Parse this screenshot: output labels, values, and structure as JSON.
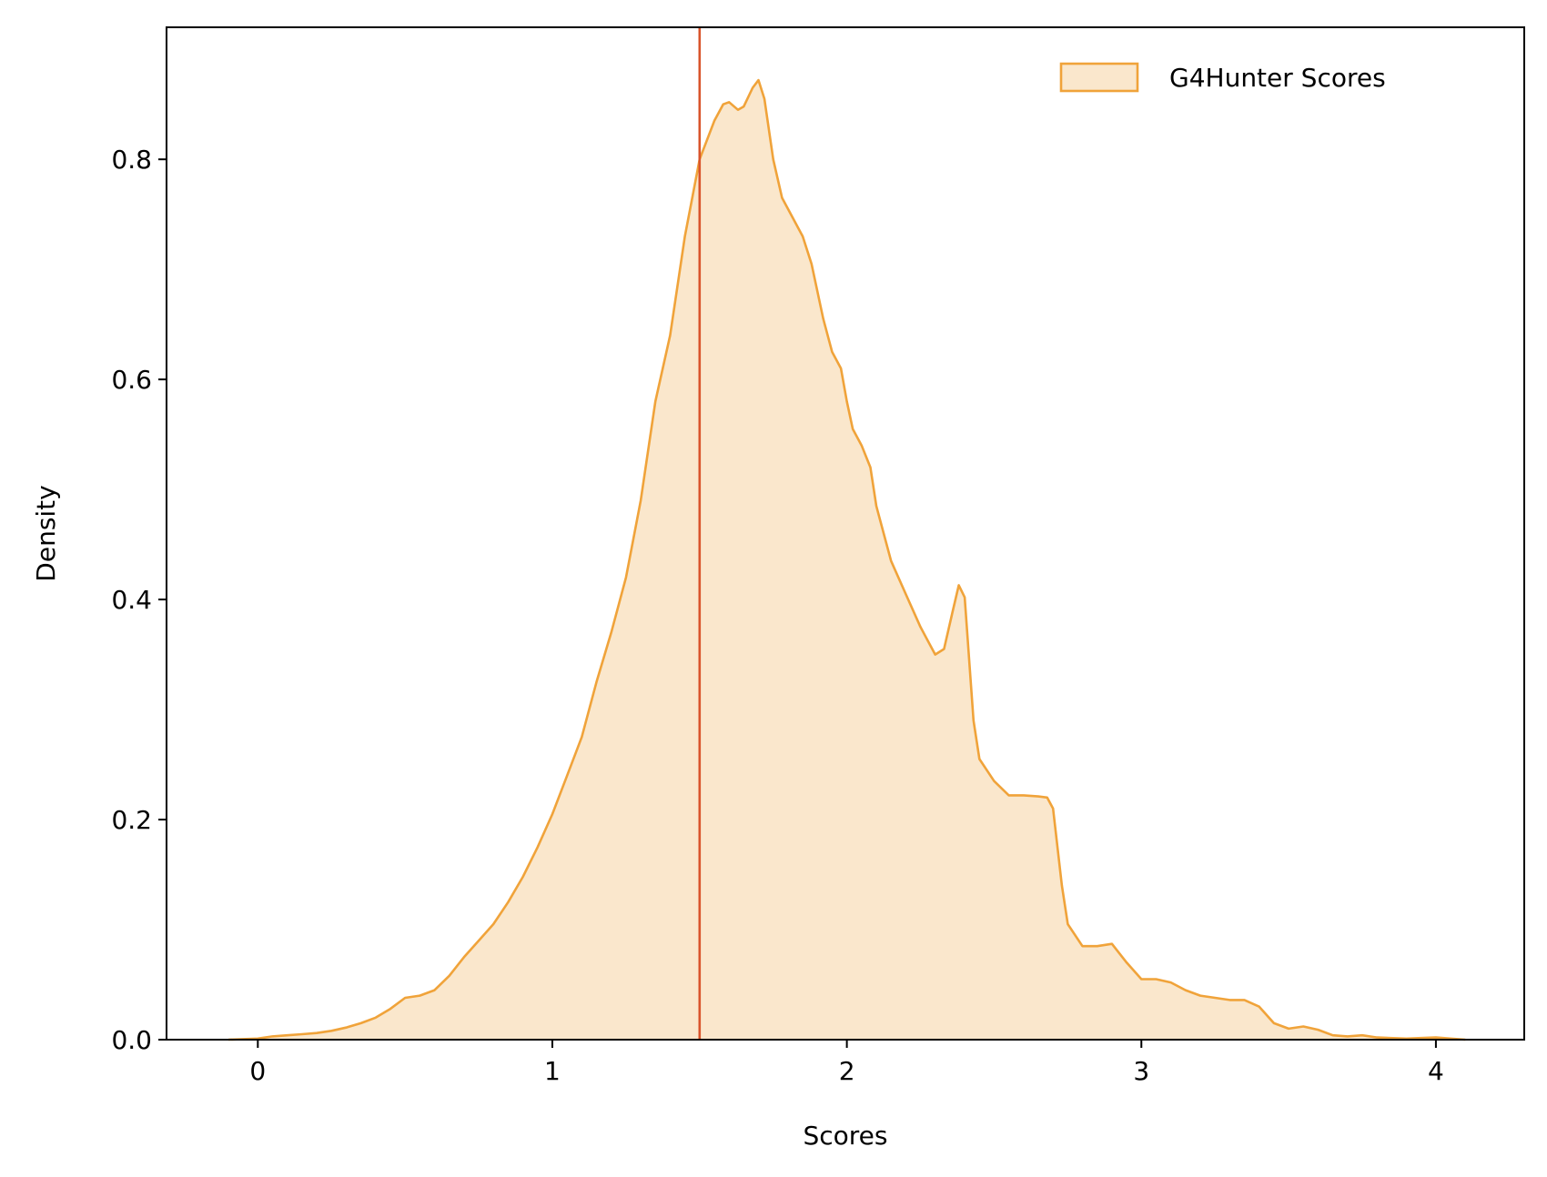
{
  "chart_data": {
    "type": "area",
    "title": "",
    "xlabel": "Scores",
    "ylabel": "Density",
    "xlim": [
      -0.31,
      4.3
    ],
    "ylim": [
      0.0,
      0.92
    ],
    "xticks": [
      0,
      1,
      2,
      3,
      4
    ],
    "xtick_labels": [
      "0",
      "1",
      "2",
      "3",
      "4"
    ],
    "yticks": [
      0.0,
      0.2,
      0.4,
      0.6,
      0.8
    ],
    "ytick_labels": [
      "0.0",
      "0.2",
      "0.4",
      "0.6",
      "0.8"
    ],
    "grid": false,
    "legend": {
      "position": "top-right",
      "entries": [
        "G4Hunter Scores"
      ]
    },
    "colors": {
      "line": "#f0a33a",
      "fill": "#fae7cc",
      "vline": "#d9542b"
    },
    "vline_x": 1.5,
    "series": [
      {
        "name": "G4Hunter Scores",
        "points": [
          [
            -0.1,
            0.0
          ],
          [
            0.0,
            0.001
          ],
          [
            0.05,
            0.003
          ],
          [
            0.1,
            0.004
          ],
          [
            0.15,
            0.005
          ],
          [
            0.2,
            0.006
          ],
          [
            0.25,
            0.008
          ],
          [
            0.3,
            0.011
          ],
          [
            0.35,
            0.015
          ],
          [
            0.4,
            0.02
          ],
          [
            0.45,
            0.028
          ],
          [
            0.5,
            0.038
          ],
          [
            0.55,
            0.04
          ],
          [
            0.6,
            0.045
          ],
          [
            0.65,
            0.058
          ],
          [
            0.7,
            0.075
          ],
          [
            0.75,
            0.09
          ],
          [
            0.8,
            0.105
          ],
          [
            0.85,
            0.125
          ],
          [
            0.9,
            0.148
          ],
          [
            0.95,
            0.175
          ],
          [
            1.0,
            0.205
          ],
          [
            1.05,
            0.24
          ],
          [
            1.1,
            0.275
          ],
          [
            1.15,
            0.325
          ],
          [
            1.2,
            0.37
          ],
          [
            1.25,
            0.42
          ],
          [
            1.3,
            0.49
          ],
          [
            1.35,
            0.58
          ],
          [
            1.4,
            0.64
          ],
          [
            1.45,
            0.73
          ],
          [
            1.5,
            0.8
          ],
          [
            1.55,
            0.835
          ],
          [
            1.58,
            0.85
          ],
          [
            1.6,
            0.852
          ],
          [
            1.63,
            0.845
          ],
          [
            1.65,
            0.848
          ],
          [
            1.68,
            0.865
          ],
          [
            1.7,
            0.872
          ],
          [
            1.72,
            0.855
          ],
          [
            1.75,
            0.8
          ],
          [
            1.78,
            0.765
          ],
          [
            1.8,
            0.755
          ],
          [
            1.85,
            0.73
          ],
          [
            1.88,
            0.705
          ],
          [
            1.92,
            0.655
          ],
          [
            1.95,
            0.625
          ],
          [
            1.98,
            0.61
          ],
          [
            2.0,
            0.58
          ],
          [
            2.02,
            0.555
          ],
          [
            2.05,
            0.54
          ],
          [
            2.08,
            0.52
          ],
          [
            2.1,
            0.485
          ],
          [
            2.13,
            0.455
          ],
          [
            2.15,
            0.435
          ],
          [
            2.2,
            0.405
          ],
          [
            2.25,
            0.375
          ],
          [
            2.3,
            0.35
          ],
          [
            2.33,
            0.355
          ],
          [
            2.36,
            0.39
          ],
          [
            2.38,
            0.413
          ],
          [
            2.4,
            0.402
          ],
          [
            2.43,
            0.29
          ],
          [
            2.45,
            0.255
          ],
          [
            2.5,
            0.235
          ],
          [
            2.55,
            0.222
          ],
          [
            2.6,
            0.222
          ],
          [
            2.65,
            0.221
          ],
          [
            2.68,
            0.22
          ],
          [
            2.7,
            0.21
          ],
          [
            2.73,
            0.14
          ],
          [
            2.75,
            0.105
          ],
          [
            2.8,
            0.085
          ],
          [
            2.85,
            0.085
          ],
          [
            2.9,
            0.087
          ],
          [
            2.95,
            0.07
          ],
          [
            3.0,
            0.055
          ],
          [
            3.05,
            0.055
          ],
          [
            3.1,
            0.052
          ],
          [
            3.15,
            0.045
          ],
          [
            3.2,
            0.04
          ],
          [
            3.25,
            0.038
          ],
          [
            3.3,
            0.036
          ],
          [
            3.35,
            0.036
          ],
          [
            3.4,
            0.03
          ],
          [
            3.45,
            0.015
          ],
          [
            3.5,
            0.01
          ],
          [
            3.55,
            0.012
          ],
          [
            3.6,
            0.009
          ],
          [
            3.65,
            0.004
          ],
          [
            3.7,
            0.003
          ],
          [
            3.75,
            0.004
          ],
          [
            3.8,
            0.002
          ],
          [
            3.9,
            0.001
          ],
          [
            4.0,
            0.002
          ],
          [
            4.05,
            0.001
          ],
          [
            4.1,
            0.0
          ]
        ]
      }
    ]
  }
}
